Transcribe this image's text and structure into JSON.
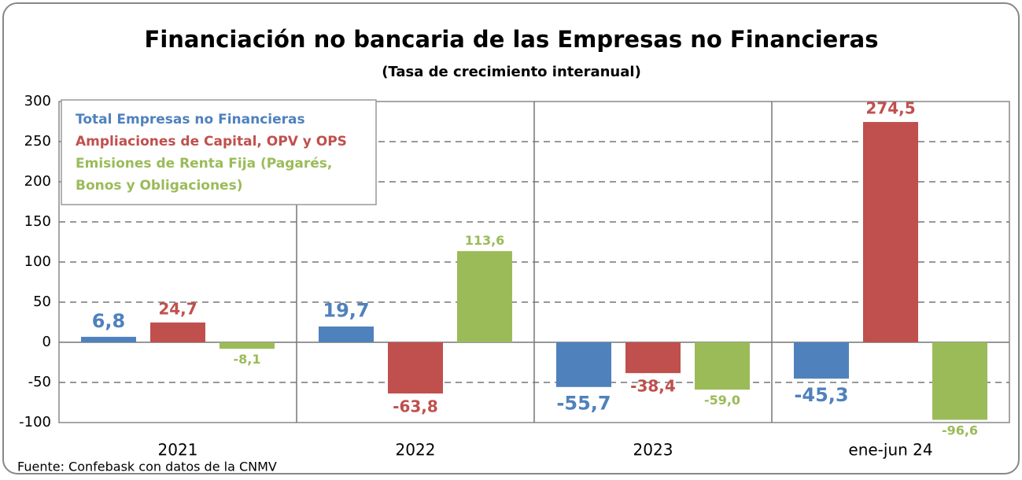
{
  "chart_data": {
    "type": "bar",
    "title": "Financiación no bancaria de las Empresas no Financieras",
    "subtitle": "(Tasa de crecimiento interanual)",
    "source": "Fuente: Confebask con datos de la CNMV",
    "categories": [
      "2021",
      "2022",
      "2023",
      "ene-jun 24"
    ],
    "series": [
      {
        "name": "Total Empresas no Financieras",
        "color": "#4f81bd",
        "values": [
          6.8,
          19.7,
          -55.7,
          -45.3
        ],
        "value_labels": [
          "6,8",
          "19,7",
          "-55,7",
          "-45,3"
        ]
      },
      {
        "name": "Ampliaciones de Capital, OPV y OPS",
        "color": "#c0504d",
        "values": [
          24.7,
          -63.8,
          -38.4,
          274.5
        ],
        "value_labels": [
          "24,7",
          "-63,8",
          "-38,4",
          "274,5"
        ]
      },
      {
        "name": "Emisiones de Renta Fija (Pagarés, Bonos y Obligaciones)",
        "color": "#9bbb59",
        "values": [
          -8.1,
          113.6,
          -59.0,
          -96.6
        ],
        "value_labels": [
          "-8,1",
          "113,6",
          "-59,0",
          "-96,6"
        ]
      }
    ],
    "ylim": [
      -100,
      300
    ],
    "yticks": [
      -100,
      -50,
      0,
      50,
      100,
      150,
      200,
      250,
      300
    ],
    "grid": true,
    "legend": "upper left"
  }
}
